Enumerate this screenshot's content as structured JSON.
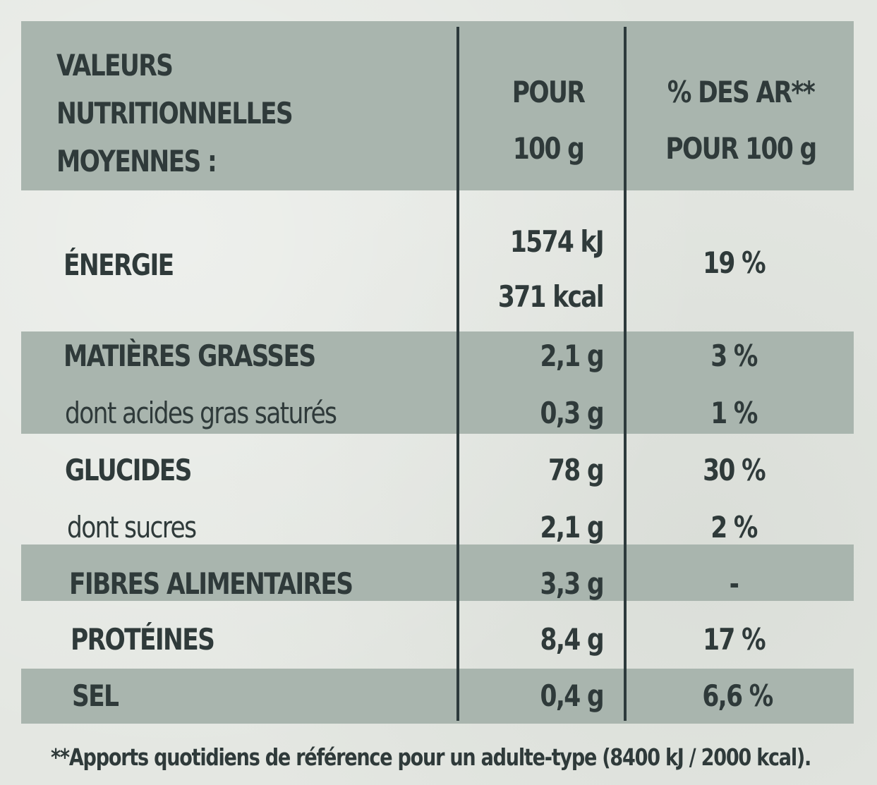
{
  "header": {
    "label_lines": [
      "VALEURS",
      "NUTRITIONNELLES",
      "MOYENNES :"
    ],
    "col1_lines": [
      "POUR",
      "100 g"
    ],
    "col2_lines": [
      "% DES AR**",
      "POUR 100 g"
    ]
  },
  "rows": [
    {
      "label": "ÉNERGIE",
      "value_lines": [
        "1574 kJ",
        "371 kcal"
      ],
      "ar": "19 %"
    },
    {
      "label": "MATIÈRES GRASSES",
      "value": "2,1 g",
      "ar": "3 %"
    },
    {
      "label": "dont acides gras saturés",
      "value": "0,3 g",
      "ar": "1 %"
    },
    {
      "label": "GLUCIDES",
      "value": "78 g",
      "ar": "30 %"
    },
    {
      "label": "dont sucres",
      "value": "2,1 g",
      "ar": "2 %"
    },
    {
      "label": "FIBRES ALIMENTAIRES",
      "value": "3,3 g",
      "ar": "-"
    },
    {
      "label": "PROTÉINES",
      "value": "8,4 g",
      "ar": "17 %"
    },
    {
      "label": "SEL",
      "value": "0,4 g",
      "ar": "6,6 %"
    }
  ],
  "footnote": "**Apports quotidiens de référence  pour un adulte-type (8400 kJ / 2000 kcal).",
  "colors": {
    "band": "#a9b5ae",
    "background": "#e4e7e2",
    "text": "#2f3a3a",
    "rule": "#2d3a3c"
  }
}
